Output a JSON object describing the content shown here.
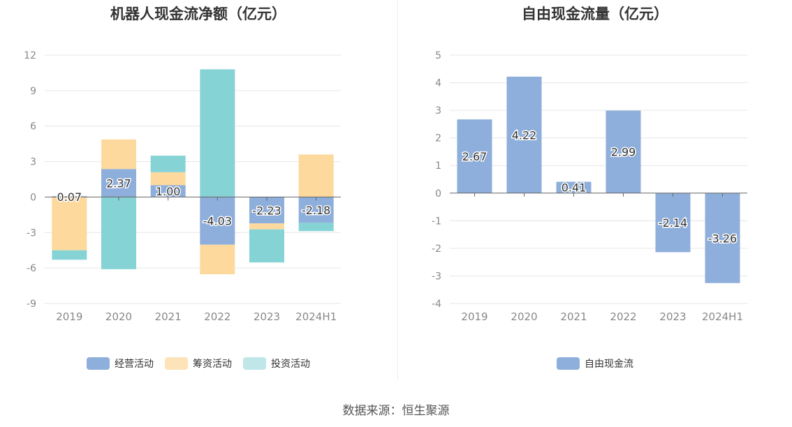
{
  "source_label": "数据来源：恒生聚源",
  "colors": {
    "operating": "#8eaedb",
    "financing": "#fdd99e",
    "investing": "#86d3d6",
    "fcf": "#8eaedb",
    "axis": "#666666",
    "grid": "#e6e6e6",
    "text": "#333333",
    "tick": "#888888"
  },
  "chart_data": [
    {
      "type": "bar",
      "stacked": true,
      "title": "机器人现金流净额（亿元）",
      "categories": [
        "2019",
        "2020",
        "2021",
        "2022",
        "2023",
        "2024H1"
      ],
      "yticks": [
        -9,
        -6,
        -3,
        0,
        3,
        6,
        9,
        12
      ],
      "ylim": [
        -9,
        12
      ],
      "series": [
        {
          "key": "operating",
          "name": "经营活动",
          "values": [
            0.07,
            2.37,
            1.0,
            -4.03,
            -2.23,
            -2.18
          ],
          "labels": [
            "0.07",
            "2.37",
            "1.00",
            "-4.03",
            "-2.23",
            "-2.18"
          ]
        },
        {
          "key": "financing",
          "name": "筹资活动",
          "values": [
            -4.5,
            2.5,
            1.1,
            -2.5,
            -0.5,
            3.6
          ]
        },
        {
          "key": "investing",
          "name": "投资活动",
          "values": [
            -0.8,
            -6.1,
            1.4,
            10.8,
            -2.8,
            -0.7
          ]
        }
      ],
      "legend": "bottom-center"
    },
    {
      "type": "bar",
      "title": "自由现金流量（亿元）",
      "categories": [
        "2019",
        "2020",
        "2021",
        "2022",
        "2023",
        "2024H1"
      ],
      "yticks": [
        -4,
        -3,
        -2,
        -1,
        0,
        1,
        2,
        3,
        4,
        5
      ],
      "ylim": [
        -4,
        5
      ],
      "series": [
        {
          "key": "fcf",
          "name": "自由现金流",
          "values": [
            2.67,
            4.22,
            0.41,
            2.99,
            -2.14,
            -3.26
          ],
          "labels": [
            "2.67",
            "4.22",
            "0.41",
            "2.99",
            "-2.14",
            "-3.26"
          ]
        }
      ],
      "legend": "bottom-center"
    }
  ]
}
